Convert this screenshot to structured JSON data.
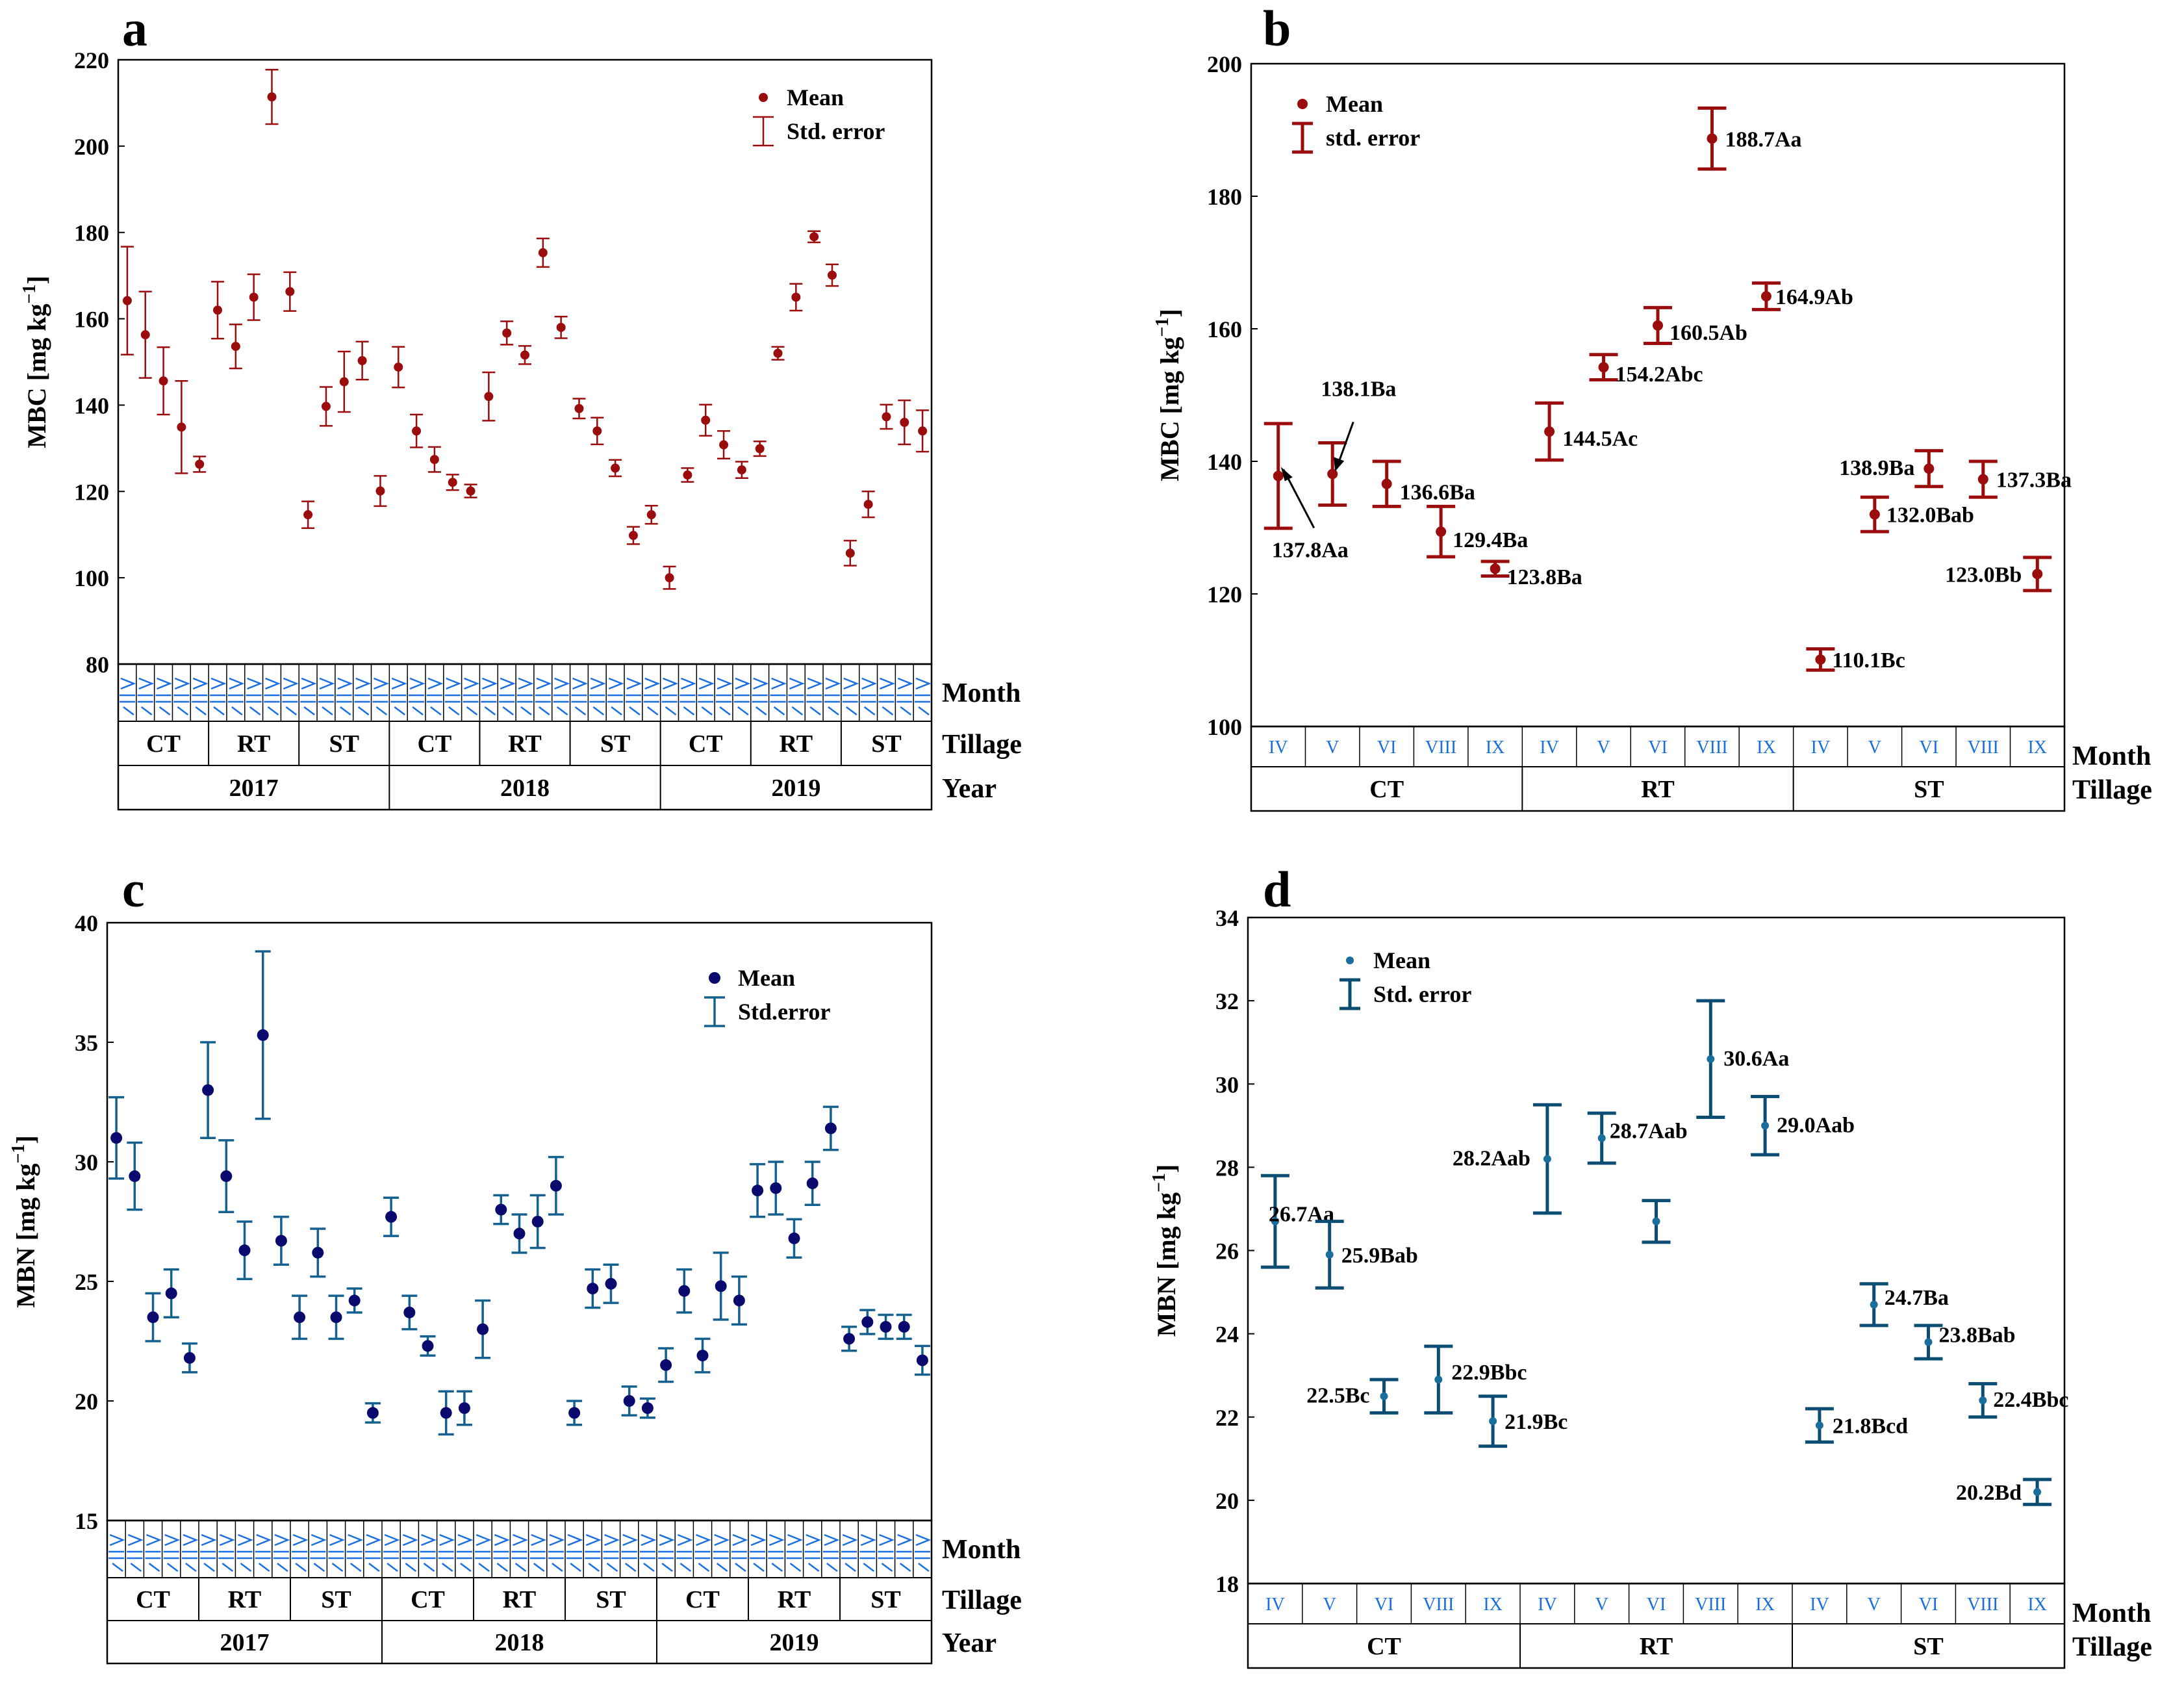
{
  "colors": {
    "mbc": "#9b0d0d",
    "mbn_c": "#0a0a6e",
    "mbn_err_c": "#14608f",
    "mbn_d": "#0c4d73",
    "mbn_d_point": "#1a6e9e",
    "month": "#1a6fe0"
  },
  "axis_row_labels": {
    "month": "Month",
    "tillage": "Tillage",
    "year": "Year"
  },
  "chart_data": [
    {
      "panel": "a",
      "type": "scatter",
      "ylabel": "MBC [mg kg",
      "ylabel_sup": "−1",
      "ylabel_end": "]",
      "ylim": [
        80,
        220
      ],
      "yticks": [
        "80",
        "100",
        "120",
        "140",
        "160",
        "180",
        "200",
        "220"
      ],
      "legend": {
        "mean": "Mean",
        "err": "Std. error"
      },
      "tillage_groups": [
        "CT",
        "RT",
        "ST",
        "CT",
        "RT",
        "ST",
        "CT",
        "RT",
        "ST"
      ],
      "years": [
        "2017",
        "2018",
        "2019"
      ],
      "values": [
        164.2,
        156.3,
        145.6,
        134.9,
        126.3,
        162.0,
        153.6,
        165.0,
        211.4,
        166.3,
        114.6,
        139.7,
        145.4,
        150.3,
        120.1,
        148.8,
        134.0,
        127.4,
        122.1,
        120.1,
        142.0,
        156.7,
        151.6,
        175.3,
        158.0,
        139.2,
        134.0,
        125.4,
        109.8,
        114.6,
        100.0,
        123.8,
        136.5,
        130.8,
        125.0,
        129.9,
        152.0,
        165.0,
        179.0,
        170.1,
        105.7,
        117.0,
        137.3,
        136.0,
        134.0
      ],
      "errors": [
        12.5,
        10.0,
        7.8,
        10.7,
        1.8,
        6.6,
        5.1,
        5.3,
        6.3,
        4.5,
        3.1,
        4.5,
        7.0,
        4.4,
        3.5,
        4.7,
        3.8,
        2.9,
        1.8,
        1.5,
        5.6,
        2.7,
        2.1,
        3.3,
        2.5,
        2.3,
        3.1,
        1.9,
        2.0,
        2.1,
        2.6,
        1.6,
        3.6,
        3.2,
        1.9,
        1.7,
        1.5,
        3.1,
        1.3,
        2.5,
        2.9,
        3.0,
        2.8,
        5.1,
        4.8
      ]
    },
    {
      "panel": "b",
      "type": "scatter",
      "ylabel": "MBC [mg kg",
      "ylabel_sup": "−1",
      "ylabel_end": "]",
      "ylim": [
        100,
        200
      ],
      "yticks": [
        "100",
        "120",
        "140",
        "160",
        "180",
        "200"
      ],
      "legend": {
        "mean": "Mean",
        "err": "std. error"
      },
      "months": [
        "IV",
        "V",
        "VI",
        "VIII",
        "IX",
        "IV",
        "V",
        "VI",
        "VIII",
        "IX",
        "IV",
        "V",
        "VI",
        "VIII",
        "IX"
      ],
      "tillage": [
        "CT",
        "RT",
        "ST"
      ],
      "values": [
        137.8,
        138.1,
        136.6,
        129.4,
        123.8,
        144.5,
        154.2,
        160.5,
        188.7,
        164.9,
        110.1,
        132.0,
        138.9,
        137.3,
        123.0
      ],
      "errors": [
        7.9,
        4.7,
        3.4,
        3.8,
        1.1,
        4.3,
        1.9,
        2.7,
        4.6,
        2.0,
        1.6,
        2.6,
        2.7,
        2.7,
        2.5
      ],
      "labels": [
        "137.8Aa",
        "138.1Ba",
        "136.6Ba",
        "129.4Ba",
        "123.8Ba",
        "144.5Ac",
        "154.2Abc",
        "160.5Ab",
        "188.7Aa",
        "164.9Ab",
        "110.1Bc",
        "132.0Bab",
        "138.9Ba",
        "137.3Ba",
        "123.0Bb"
      ]
    },
    {
      "panel": "c",
      "type": "scatter",
      "ylabel": "MBN [mg kg",
      "ylabel_sup": "−1",
      "ylabel_end": "]",
      "ylim": [
        15,
        40
      ],
      "yticks": [
        "15",
        "20",
        "25",
        "30",
        "35",
        "40"
      ],
      "legend": {
        "mean": "Mean",
        "err": "Std.error"
      },
      "tillage_groups": [
        "CT",
        "RT",
        "ST",
        "CT",
        "RT",
        "ST",
        "CT",
        "RT",
        "ST"
      ],
      "years": [
        "2017",
        "2018",
        "2019"
      ],
      "values": [
        31.0,
        29.4,
        23.5,
        24.5,
        21.8,
        33.0,
        29.4,
        26.3,
        35.3,
        26.7,
        23.5,
        26.2,
        23.5,
        24.2,
        19.5,
        27.7,
        23.7,
        22.3,
        19.5,
        19.7,
        23.0,
        28.0,
        27.0,
        27.5,
        29.0,
        19.5,
        24.7,
        24.9,
        20.0,
        19.7,
        21.5,
        24.6,
        21.9,
        24.8,
        24.2,
        28.8,
        28.9,
        26.8,
        29.1,
        31.4,
        22.6,
        23.3,
        23.1,
        23.1,
        21.7
      ],
      "errors": [
        1.7,
        1.4,
        1.0,
        1.0,
        0.6,
        2.0,
        1.5,
        1.2,
        3.5,
        1.0,
        0.9,
        1.0,
        0.9,
        0.5,
        0.4,
        0.8,
        0.7,
        0.4,
        0.9,
        0.7,
        1.2,
        0.6,
        0.8,
        1.1,
        1.2,
        0.5,
        0.8,
        0.8,
        0.6,
        0.4,
        0.7,
        0.9,
        0.7,
        1.4,
        1.0,
        1.1,
        1.1,
        0.8,
        0.9,
        0.9,
        0.5,
        0.5,
        0.5,
        0.5,
        0.6
      ]
    },
    {
      "panel": "d",
      "type": "scatter",
      "ylabel": "MBN [mg kg",
      "ylabel_sup": "−1",
      "ylabel_end": "]",
      "ylim": [
        18,
        34
      ],
      "yticks": [
        "18",
        "20",
        "22",
        "24",
        "26",
        "28",
        "30",
        "32",
        "34"
      ],
      "legend": {
        "mean": "Mean",
        "err": "Std. error"
      },
      "months": [
        "IV",
        "V",
        "VI",
        "VIII",
        "IX",
        "IV",
        "V",
        "VI",
        "VIII",
        "IX",
        "IV",
        "V",
        "VI",
        "VIII",
        "IX"
      ],
      "tillage": [
        "CT",
        "RT",
        "ST"
      ],
      "values": [
        26.7,
        25.9,
        22.5,
        22.9,
        21.9,
        28.2,
        28.7,
        26.7,
        30.6,
        29.0,
        21.8,
        24.7,
        23.8,
        22.4,
        20.2
      ],
      "errors": [
        1.1,
        0.8,
        0.4,
        0.8,
        0.6,
        1.3,
        0.6,
        0.5,
        1.4,
        0.7,
        0.4,
        0.5,
        0.4,
        0.4,
        0.3
      ],
      "labels": [
        "26.7Aa",
        "25.9Bab",
        "22.5Bc",
        "22.9Bbc",
        "21.9Bc",
        "28.2Aab",
        "28.7Aab",
        "",
        "30.6Aa",
        "29.0Aab",
        "21.8Bcd",
        "24.7Ba",
        "23.8Bab",
        "22.4Bbc",
        "20.2Bd"
      ]
    }
  ]
}
